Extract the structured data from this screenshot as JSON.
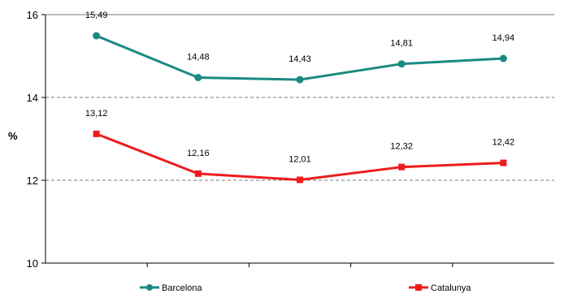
{
  "chart_data": {
    "type": "line",
    "ylabel": "%",
    "ylim": [
      10,
      16
    ],
    "yticks": [
      10,
      12,
      14,
      16
    ],
    "ytick_labels": [
      "10",
      "12",
      "14",
      "16"
    ],
    "x": [
      1,
      2,
      3,
      4,
      5
    ],
    "grid": "horizontal dashed",
    "legend_position": "bottom",
    "series": [
      {
        "name": "Barcelona",
        "color": "#1A8A80",
        "marker": "circle",
        "values": [
          15.49,
          14.48,
          14.43,
          14.81,
          14.94
        ],
        "labels": [
          "15,49",
          "14,48",
          "14,43",
          "14,81",
          "14,94"
        ]
      },
      {
        "name": "Catalunya",
        "color": "#EE1C1C",
        "marker": "square",
        "values": [
          13.12,
          12.16,
          12.01,
          12.32,
          12.42
        ],
        "labels": [
          "13,12",
          "12,16",
          "12,01",
          "12,32",
          "12,42"
        ]
      }
    ]
  }
}
